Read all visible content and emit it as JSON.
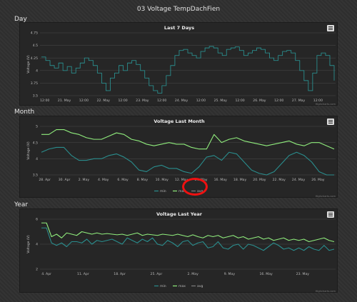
{
  "page_title": "03 Voltage TempDachFien",
  "sections": [
    {
      "label": "Day"
    },
    {
      "label": "Month"
    },
    {
      "label": "Year"
    }
  ],
  "colors": {
    "min": "#2a8d8d",
    "max": "#90ed7d",
    "avg": "#7d7d7d",
    "annotation": "#ee1111"
  },
  "chart_data": [
    {
      "type": "line",
      "title": "Last 7 Days",
      "ylabel": "Voltage (V)",
      "ylim": [
        3.5,
        4.75
      ],
      "yticks": [
        "3.5",
        "3.75",
        "4",
        "4.25",
        "4.5",
        "4.75"
      ],
      "xtick_labels": [
        "12:00",
        "21. May",
        "12:00",
        "22. May",
        "12:00",
        "23. May",
        "12:00",
        "24. May",
        "12:00",
        "25. May",
        "12:00",
        "26. May",
        "12:00",
        "27. May",
        "12:00"
      ],
      "credit": "Highcharts.com",
      "series": [
        {
          "color_key": "min",
          "step": true,
          "values": [
            4.27,
            4.2,
            4.1,
            4.05,
            4.15,
            4.0,
            4.08,
            3.95,
            4.05,
            4.15,
            4.25,
            4.2,
            4.1,
            3.95,
            3.75,
            3.6,
            3.85,
            3.95,
            4.1,
            4.0,
            4.15,
            4.2,
            4.12,
            4.0,
            3.85,
            3.7,
            3.6,
            3.55,
            3.7,
            3.9,
            4.1,
            4.3,
            4.4,
            4.42,
            4.35,
            4.3,
            4.25,
            4.38,
            4.45,
            4.48,
            4.45,
            4.35,
            4.3,
            4.42,
            4.45,
            4.47,
            4.4,
            4.3,
            4.35,
            4.4,
            4.45,
            4.42,
            4.35,
            4.25,
            4.2,
            4.3,
            4.38,
            4.4,
            4.35,
            4.2,
            4.0,
            3.8,
            3.6,
            3.95,
            4.3,
            4.35,
            4.3,
            4.1,
            3.8
          ]
        }
      ]
    },
    {
      "type": "line",
      "title": "Voltage Last Month",
      "ylabel": "Voltage (V)",
      "ylim": [
        3.5,
        5
      ],
      "yticks": [
        "3.5",
        "4",
        "4.5",
        "5"
      ],
      "xtick_labels": [
        "28. Apr",
        "30. Apr",
        "2. May",
        "4. May",
        "6. May",
        "8. May",
        "10. May",
        "12. May",
        "14. May",
        "16. May",
        "18. May",
        "20. May",
        "22. May",
        "24. May",
        "26. May"
      ],
      "legend": [
        "min",
        "max",
        "avg"
      ],
      "credit": "Highcharts.com",
      "series": [
        {
          "name": "min",
          "color_key": "min",
          "values": [
            4.2,
            4.3,
            4.35,
            4.35,
            4.1,
            3.95,
            3.95,
            4.0,
            4.0,
            4.1,
            4.15,
            4.05,
            3.9,
            3.65,
            3.6,
            3.75,
            3.8,
            3.7,
            3.7,
            3.6,
            3.55,
            3.75,
            4.05,
            4.1,
            3.95,
            4.2,
            4.15,
            3.9,
            3.65,
            3.55,
            3.5,
            3.6,
            3.85,
            4.1,
            4.2,
            4.1,
            3.9,
            3.6,
            3.5,
            3.5
          ]
        },
        {
          "name": "max",
          "color_key": "max",
          "values": [
            4.75,
            4.75,
            4.9,
            4.9,
            4.8,
            4.75,
            4.65,
            4.6,
            4.6,
            4.7,
            4.8,
            4.75,
            4.6,
            4.55,
            4.45,
            4.4,
            4.45,
            4.5,
            4.45,
            4.45,
            4.35,
            4.3,
            4.3,
            4.75,
            4.5,
            4.6,
            4.65,
            4.55,
            4.5,
            4.45,
            4.4,
            4.45,
            4.5,
            4.55,
            4.45,
            4.4,
            4.5,
            4.5,
            4.4,
            4.3
          ]
        },
        {
          "name": "avg",
          "color_key": "avg",
          "values": []
        }
      ]
    },
    {
      "type": "line",
      "title": "Voltage Last Year",
      "ylabel": "Voltage (V)",
      "ylim": [
        2,
        6
      ],
      "yticks": [
        "2",
        "4",
        "6"
      ],
      "xtick_labels": [
        "4. Apr",
        "11. Apr",
        "18. Apr",
        "25. Apr",
        "2. May",
        "9. May",
        "16. May",
        "23. May"
      ],
      "legend": [
        "min",
        "max",
        "avg"
      ],
      "credit": "Highcharts.com",
      "series": [
        {
          "name": "min",
          "color_key": "min",
          "values": [
            5.3,
            5.3,
            4.1,
            3.9,
            4.1,
            3.8,
            4.2,
            4.2,
            4.1,
            4.4,
            4.0,
            4.3,
            4.2,
            4.3,
            4.4,
            4.2,
            4.0,
            4.5,
            4.3,
            4.1,
            4.4,
            4.2,
            4.5,
            4.0,
            3.9,
            4.3,
            4.1,
            3.8,
            4.2,
            4.3,
            3.9,
            4.1,
            4.2,
            3.7,
            3.8,
            4.2,
            3.7,
            3.6,
            3.9,
            4.0,
            3.6,
            4.0,
            3.9,
            3.7,
            3.5,
            3.8,
            4.1,
            3.9,
            3.6,
            3.7,
            3.5,
            3.7,
            3.5,
            3.8,
            3.6,
            3.5,
            3.9,
            3.5,
            3.6
          ]
        },
        {
          "name": "max",
          "color_key": "max",
          "values": [
            5.7,
            5.7,
            4.6,
            4.8,
            4.5,
            4.9,
            4.8,
            4.7,
            5.0,
            4.9,
            4.8,
            4.9,
            4.8,
            4.85,
            4.8,
            4.75,
            4.8,
            4.7,
            4.8,
            4.9,
            4.7,
            4.8,
            4.75,
            4.7,
            4.8,
            4.75,
            4.7,
            4.8,
            4.7,
            4.6,
            4.75,
            4.6,
            4.5,
            4.7,
            4.6,
            4.7,
            4.5,
            4.6,
            4.7,
            4.5,
            4.6,
            4.4,
            4.5,
            4.6,
            4.4,
            4.5,
            4.3,
            4.4,
            4.5,
            4.3,
            4.4,
            4.3,
            4.4,
            4.2,
            4.3,
            4.4,
            4.5,
            4.3,
            4.2
          ]
        },
        {
          "name": "avg",
          "color_key": "avg",
          "values": []
        }
      ]
    }
  ]
}
